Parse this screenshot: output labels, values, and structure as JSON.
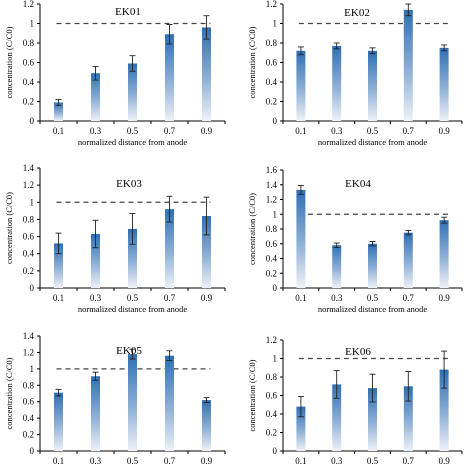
{
  "chart_data": [
    {
      "type": "bar",
      "title": "EK01",
      "xlabel": "normalized distance from anode",
      "ylabel": "concentration (C/C0)",
      "categories": [
        "0.1",
        "0.3",
        "0.5",
        "0.7",
        "0.9"
      ],
      "values": [
        0.19,
        0.49,
        0.59,
        0.89,
        0.96
      ],
      "errors": [
        0.03,
        0.07,
        0.08,
        0.1,
        0.12
      ],
      "ylim": [
        0,
        1.2
      ],
      "yticks": [
        "0",
        "0.2",
        "0.4",
        "0.6",
        "0.8",
        "1",
        "1.2"
      ],
      "reference_line": 1.0
    },
    {
      "type": "bar",
      "title": "EK02",
      "xlabel": "normalized distance from anode",
      "ylabel": "concentration (C/C0)",
      "categories": [
        "0.1",
        "0.3",
        "0.5",
        "0.7",
        "0.9"
      ],
      "values": [
        0.72,
        0.77,
        0.72,
        1.14,
        0.75
      ],
      "errors": [
        0.04,
        0.03,
        0.03,
        0.06,
        0.03
      ],
      "ylim": [
        0,
        1.2
      ],
      "yticks": [
        "0",
        "0.2",
        "0.4",
        "0.6",
        "0.8",
        "1",
        "1.2"
      ],
      "reference_line": 1.0
    },
    {
      "type": "bar",
      "title": "EK03",
      "xlabel": "normalized distance from anode",
      "ylabel": "concentration (C/C0)",
      "categories": [
        "0.1",
        "0.3",
        "0.5",
        "0.7",
        "0.9"
      ],
      "values": [
        0.52,
        0.63,
        0.69,
        0.92,
        0.84
      ],
      "errors": [
        0.12,
        0.16,
        0.18,
        0.15,
        0.22
      ],
      "ylim": [
        0,
        1.4
      ],
      "yticks": [
        "0",
        "0.2",
        "0.4",
        "0.6",
        "0.8",
        "1",
        "1.2",
        "1.4"
      ],
      "reference_line": 1.0
    },
    {
      "type": "bar",
      "title": "EK04",
      "xlabel": "normalized distance from anode",
      "ylabel": "concentration (C/C0)",
      "categories": [
        "0.1",
        "0.3",
        "0.5",
        "0.7",
        "0.9"
      ],
      "values": [
        1.33,
        0.58,
        0.6,
        0.75,
        0.92
      ],
      "errors": [
        0.06,
        0.03,
        0.03,
        0.03,
        0.04
      ],
      "ylim": [
        0,
        1.6
      ],
      "yticks": [
        "0",
        "0.2",
        "0.4",
        "0.6",
        "0.8",
        "1",
        "1.2",
        "1.4",
        "1.6"
      ],
      "reference_line": 1.0
    },
    {
      "type": "bar",
      "title": "EK05",
      "xlabel": "",
      "ylabel": "concentration (C/C0)",
      "categories": [
        "0.1",
        "0.3",
        "0.5",
        "0.7",
        "0.9"
      ],
      "values": [
        0.71,
        0.91,
        1.18,
        1.16,
        0.62
      ],
      "errors": [
        0.04,
        0.05,
        0.06,
        0.06,
        0.03
      ],
      "ylim": [
        0,
        1.4
      ],
      "yticks": [
        "0",
        "0.2",
        "0.4",
        "0.6",
        "0.8",
        "1",
        "1.2",
        "1.4"
      ],
      "reference_line": 1.0
    },
    {
      "type": "bar",
      "title": "EK06",
      "xlabel": "",
      "ylabel": "concentration (C/C0)",
      "categories": [
        "0.1",
        "0.3",
        "0.5",
        "0.7",
        "0.9"
      ],
      "values": [
        0.48,
        0.72,
        0.68,
        0.7,
        0.88
      ],
      "errors": [
        0.11,
        0.15,
        0.15,
        0.16,
        0.2
      ],
      "ylim": [
        0,
        1.2
      ],
      "yticks": [
        "0",
        "0.2",
        "0.4",
        "0.6",
        "0.8",
        "1",
        "1.2"
      ],
      "reference_line": 1.0
    }
  ]
}
